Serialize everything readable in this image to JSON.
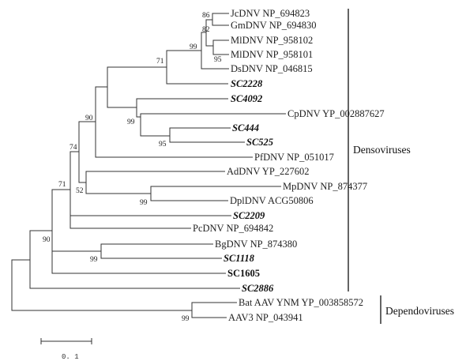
{
  "tree": {
    "taxa": [
      {
        "label": "JcDNV NP_694823",
        "style": "plain"
      },
      {
        "label": "GmDNV NP_694830",
        "style": "plain"
      },
      {
        "label": "MlDNV NP_958102",
        "style": "plain"
      },
      {
        "label": "MlDNV NP_958101",
        "style": "plain"
      },
      {
        "label": "DsDNV NP_046815",
        "style": "plain"
      },
      {
        "label": "SC2228",
        "style": "bold-italic"
      },
      {
        "label": "SC4092",
        "style": "bold-italic"
      },
      {
        "label": "CpDNV YP_002887627",
        "style": "plain"
      },
      {
        "label": "SC444",
        "style": "bold-italic"
      },
      {
        "label": "SC525",
        "style": "bold-italic"
      },
      {
        "label": "PfDNV NP_051017",
        "style": "plain"
      },
      {
        "label": "AdDNV YP_227602",
        "style": "plain"
      },
      {
        "label": "MpDNV NP_874377",
        "style": "plain"
      },
      {
        "label": "DplDNV ACG50806",
        "style": "plain"
      },
      {
        "label": "SC2209",
        "style": "bold-italic"
      },
      {
        "label": "PcDNV NP_694842",
        "style": "plain"
      },
      {
        "label": "BgDNV NP_874380",
        "style": "plain"
      },
      {
        "label": "SC1118",
        "style": "bold-italic"
      },
      {
        "label": "SC1605",
        "style": "bold"
      },
      {
        "label": "SC2886",
        "style": "bold-italic"
      },
      {
        "label": "Bat AAV YNM YP_003858572",
        "style": "plain"
      },
      {
        "label": "AAV3 NP_043941",
        "style": "plain"
      }
    ],
    "bootstrap": [
      "86",
      "82",
      "95",
      "99",
      "71",
      "99",
      "95",
      "90",
      "74",
      "52",
      "99",
      "71",
      "90",
      "99",
      "99"
    ],
    "clades": [
      {
        "label": "Densoviruses"
      },
      {
        "label": "Dependoviruses"
      }
    ],
    "scale_bar": {
      "label": "0. 1"
    }
  }
}
